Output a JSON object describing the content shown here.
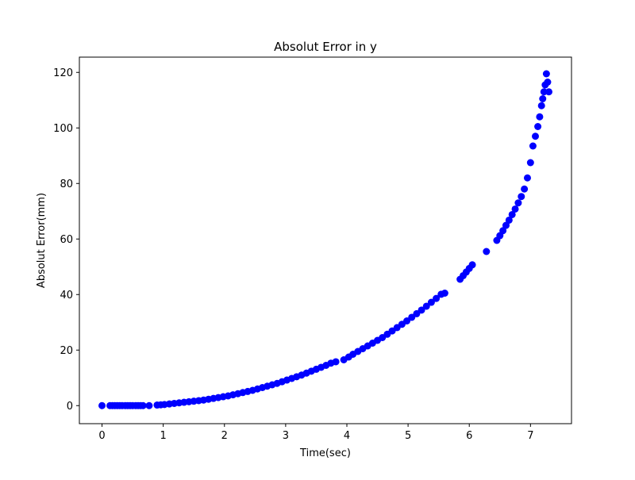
{
  "chart_data": {
    "type": "scatter",
    "title": "Absolut Error in y",
    "xlabel": "Time(sec)",
    "ylabel": "Absolut Error(mm)",
    "xlim": [
      -0.37,
      7.67
    ],
    "ylim": [
      -6.5,
      125.5
    ],
    "xticks": [
      0,
      1,
      2,
      3,
      4,
      5,
      6,
      7
    ],
    "yticks": [
      0,
      20,
      40,
      60,
      80,
      100,
      120
    ],
    "grid": false,
    "legend": "none",
    "series": [
      {
        "color": "#0000ff",
        "x": [
          0.0,
          0.13,
          0.17,
          0.21,
          0.25,
          0.29,
          0.33,
          0.38,
          0.42,
          0.46,
          0.5,
          0.55,
          0.59,
          0.63,
          0.67,
          0.77,
          0.9,
          0.96,
          1.02,
          1.1,
          1.18,
          1.26,
          1.34,
          1.42,
          1.5,
          1.58,
          1.66,
          1.74,
          1.82,
          1.9,
          1.98,
          2.06,
          2.14,
          2.22,
          2.3,
          2.38,
          2.46,
          2.54,
          2.62,
          2.7,
          2.78,
          2.86,
          2.94,
          3.02,
          3.1,
          3.18,
          3.26,
          3.34,
          3.42,
          3.5,
          3.58,
          3.66,
          3.74,
          3.82,
          3.95,
          4.03,
          4.1,
          4.18,
          4.26,
          4.34,
          4.42,
          4.5,
          4.58,
          4.66,
          4.74,
          4.82,
          4.9,
          4.98,
          5.06,
          5.14,
          5.22,
          5.3,
          5.38,
          5.46,
          5.54,
          5.6,
          5.85,
          5.9,
          5.95,
          6.0,
          6.05,
          6.28,
          6.45,
          6.5,
          6.55,
          6.6,
          6.65,
          6.7,
          6.75,
          6.8,
          6.85,
          6.9,
          6.95,
          7.0,
          7.04,
          7.08,
          7.12,
          7.15,
          7.18,
          7.2,
          7.22,
          7.24,
          7.26,
          7.28,
          7.3
        ],
        "y": [
          0.0,
          0.0,
          0.0,
          0.0,
          0.0,
          0.0,
          0.0,
          0.0,
          0.0,
          0.0,
          0.0,
          0.0,
          0.0,
          0.0,
          0.0,
          0.0,
          0.2,
          0.3,
          0.4,
          0.6,
          0.8,
          1.0,
          1.2,
          1.4,
          1.6,
          1.8,
          2.0,
          2.3,
          2.6,
          2.9,
          3.2,
          3.5,
          3.9,
          4.3,
          4.7,
          5.1,
          5.5,
          6.0,
          6.5,
          7.0,
          7.5,
          8.0,
          8.6,
          9.2,
          9.8,
          10.4,
          11.0,
          11.7,
          12.4,
          13.1,
          13.8,
          14.5,
          15.3,
          15.8,
          16.5,
          17.5,
          18.5,
          19.5,
          20.5,
          21.5,
          22.5,
          23.5,
          24.5,
          25.7,
          26.9,
          28.1,
          29.3,
          30.5,
          31.8,
          33.1,
          34.4,
          35.8,
          37.2,
          38.6,
          40.1,
          40.5,
          45.5,
          46.8,
          48.1,
          49.4,
          50.7,
          55.5,
          59.5,
          61.2,
          63.0,
          64.9,
          66.8,
          68.8,
          70.8,
          73.0,
          75.3,
          78.0,
          82.0,
          87.5,
          93.5,
          97.0,
          100.5,
          104.0,
          108.0,
          110.5,
          113.0,
          115.5,
          119.5,
          116.5,
          113.0
        ]
      }
    ]
  }
}
